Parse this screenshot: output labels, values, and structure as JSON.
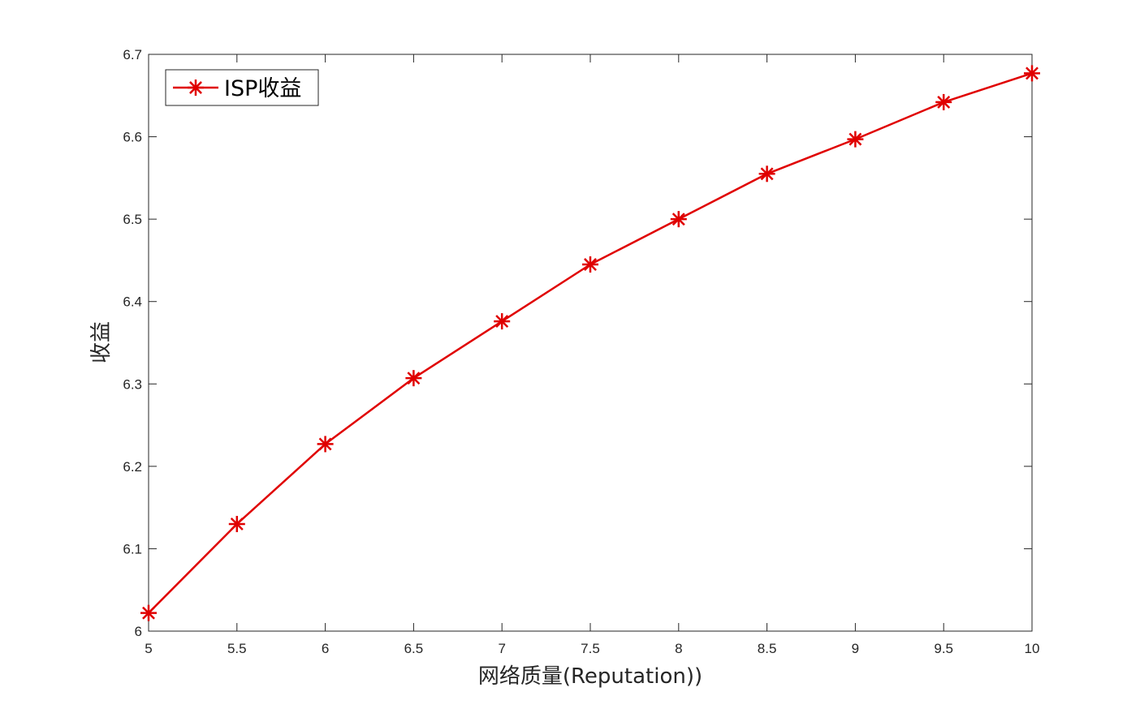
{
  "chart_data": {
    "type": "line",
    "title": "",
    "xlabel": "网络质量(Reputation))",
    "ylabel": "收益",
    "xlim": [
      5,
      10
    ],
    "ylim": [
      6,
      6.7
    ],
    "x_ticks": [
      5,
      5.5,
      6,
      6.5,
      7,
      7.5,
      8,
      8.5,
      9,
      9.5,
      10
    ],
    "x_tick_labels": [
      "5",
      "5.5",
      "6",
      "6.5",
      "7",
      "7.5",
      "8",
      "8.5",
      "9",
      "9.5",
      "10"
    ],
    "y_ticks": [
      6,
      6.1,
      6.2,
      6.3,
      6.4,
      6.5,
      6.6,
      6.7
    ],
    "y_tick_labels": [
      "6",
      "6.1",
      "6.2",
      "6.3",
      "6.4",
      "6.5",
      "6.6",
      "6.7"
    ],
    "grid": false,
    "legend_position": "top-left",
    "series": [
      {
        "name": "ISP收益",
        "color": "#e00000",
        "marker": "asterisk",
        "x": [
          5,
          5.5,
          6,
          6.5,
          7,
          7.5,
          8,
          8.5,
          9,
          9.5,
          10
        ],
        "values": [
          6.022,
          6.13,
          6.227,
          6.307,
          6.376,
          6.445,
          6.5,
          6.555,
          6.597,
          6.642,
          6.677
        ]
      }
    ]
  }
}
